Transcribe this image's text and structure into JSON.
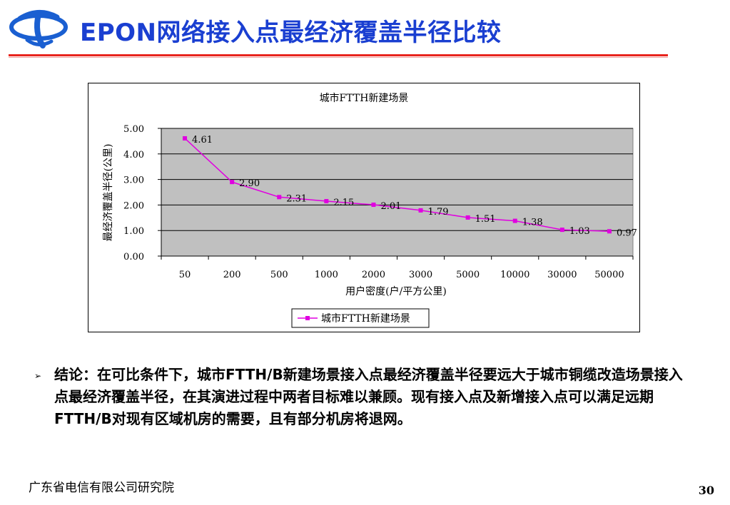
{
  "slide": {
    "title": "EPON网络接入点最经济覆盖半径比较",
    "bullet": "➢",
    "conclusion": "结论：在可比条件下，城市FTTH/B新建场景接入点最经济覆盖半径要远大于城市铜缆改造场景接入点最经济覆盖半径，在其演进过程中两者目标难以兼顾。现有接入点及新增接入点可以满足远期FTTH/B对现有区域机房的需要，且有部分机房将退网。",
    "footer_org": "广东省电信有限公司研究院",
    "page_number": "30"
  },
  "colors": {
    "title": "#1a3fd1",
    "rule": "#e8241d",
    "series": "#e000e0",
    "plot_bg": "#c0c0c0"
  },
  "chart_data": {
    "type": "line",
    "title": "城市FTTH新建场景",
    "xlabel": "用户密度(户/平方公里)",
    "ylabel": "最经济覆盖半径(公里)",
    "categories": [
      "50",
      "200",
      "500",
      "1000",
      "2000",
      "3000",
      "5000",
      "10000",
      "30000",
      "50000"
    ],
    "series": [
      {
        "name": "城市FTTH新建场景",
        "values": [
          4.61,
          2.9,
          2.31,
          2.15,
          2.01,
          1.79,
          1.51,
          1.38,
          1.03,
          0.97
        ]
      }
    ],
    "data_labels": [
      "4.61",
      "2.90",
      "2.31",
      "2.15",
      "2.01",
      "1.79",
      "1.51",
      "1.38",
      "1.03",
      "0.97"
    ],
    "y_ticks": [
      "0.00",
      "1.00",
      "2.00",
      "3.00",
      "4.00",
      "5.00"
    ],
    "ylim": [
      0,
      5
    ],
    "grid": true,
    "legend": "bottom"
  }
}
